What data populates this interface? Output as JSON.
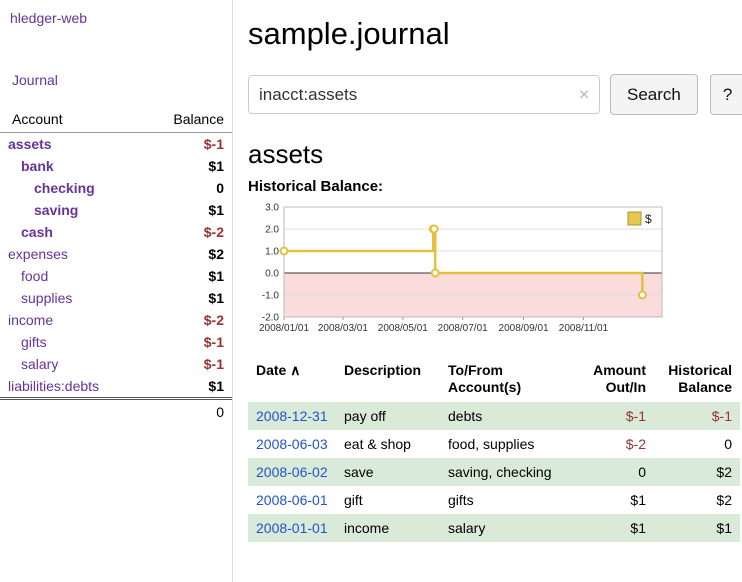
{
  "colors": {
    "purple": "#663399",
    "negative": "#993333",
    "link": "#2255cc",
    "row_green": "#d9ead9",
    "chart_line": "#e2c13f",
    "chart_negative_bg": "#fbdcdc"
  },
  "sidebar": {
    "app_title": "hledger-web",
    "nav": [
      {
        "label": "Journal"
      }
    ],
    "table": {
      "account_header": "Account",
      "balance_header": "Balance"
    },
    "accounts": [
      {
        "name": "assets",
        "depth": 0,
        "bold": true,
        "balance": "$-1"
      },
      {
        "name": "bank",
        "depth": 1,
        "bold": true,
        "balance": "$1"
      },
      {
        "name": "checking",
        "depth": 2,
        "bold": true,
        "balance": "0"
      },
      {
        "name": "saving",
        "depth": 2,
        "bold": true,
        "balance": "$1"
      },
      {
        "name": "cash",
        "depth": 1,
        "bold": true,
        "balance": "$-2"
      },
      {
        "name": "expenses",
        "depth": 0,
        "bold": false,
        "balance": "$2"
      },
      {
        "name": "food",
        "depth": 1,
        "bold": false,
        "balance": "$1"
      },
      {
        "name": "supplies",
        "depth": 1,
        "bold": false,
        "balance": "$1"
      },
      {
        "name": "income",
        "depth": 0,
        "bold": false,
        "balance": "$-2"
      },
      {
        "name": "gifts",
        "depth": 1,
        "bold": false,
        "balance": "$-1"
      },
      {
        "name": "salary",
        "depth": 1,
        "bold": false,
        "balance": "$-1"
      },
      {
        "name": "liabilities:debts",
        "depth": 0,
        "bold": false,
        "balance": "$1"
      }
    ],
    "total": "0"
  },
  "header": {
    "title": "sample.journal"
  },
  "search": {
    "value": "inacct:assets",
    "clear_icon": "✕",
    "button": "Search",
    "help_button": "?"
  },
  "register": {
    "heading": "assets",
    "chart_label": "Historical Balance:",
    "sort_icon": "∧",
    "columns": {
      "date": "Date",
      "description": "Description",
      "tofrom": "To/From Account(s)",
      "amount": "Amount Out/In",
      "balance": "Historical Balance"
    },
    "rows": [
      {
        "date": "2008-12-31",
        "description": "pay off",
        "tofrom": "debts",
        "amount": "$-1",
        "balance": "$-1"
      },
      {
        "date": "2008-06-03",
        "description": "eat & shop",
        "tofrom": "food, supplies",
        "amount": "$-2",
        "balance": "0"
      },
      {
        "date": "2008-06-02",
        "description": "save",
        "tofrom": "saving, checking",
        "amount": "0",
        "balance": "$2"
      },
      {
        "date": "2008-06-01",
        "description": "gift",
        "tofrom": "gifts",
        "amount": "$1",
        "balance": "$2"
      },
      {
        "date": "2008-01-01",
        "description": "income",
        "tofrom": "salary",
        "amount": "$1",
        "balance": "$1"
      }
    ]
  },
  "chart_data": {
    "type": "line",
    "title": "Historical Balance",
    "step": true,
    "series": [
      {
        "name": "$",
        "points": [
          [
            "2008-01-01",
            1
          ],
          [
            "2008-06-01",
            2
          ],
          [
            "2008-06-02",
            2
          ],
          [
            "2008-06-03",
            0
          ],
          [
            "2008-12-31",
            -1
          ]
        ]
      }
    ],
    "x_domain": [
      "2008-01-01",
      "2009-01-20"
    ],
    "x_ticks": [
      {
        "date": "2008-01-01",
        "label": "2008/01/01"
      },
      {
        "date": "2008-03-01",
        "label": "2008/03/01"
      },
      {
        "date": "2008-05-01",
        "label": "2008/05/01"
      },
      {
        "date": "2008-07-01",
        "label": "2008/07/01"
      },
      {
        "date": "2008-09-01",
        "label": "2008/09/01"
      },
      {
        "date": "2008-11-01",
        "label": "2008/11/01"
      }
    ],
    "ylim": [
      -2,
      3
    ],
    "y_ticks": [
      "3.0",
      "2.0",
      "1.0",
      "0.0",
      "-1.0",
      "-2.0"
    ],
    "legend": {
      "label": "$",
      "position": "top-right"
    },
    "grid": "horizontal",
    "negative_region_highlighted": true
  }
}
